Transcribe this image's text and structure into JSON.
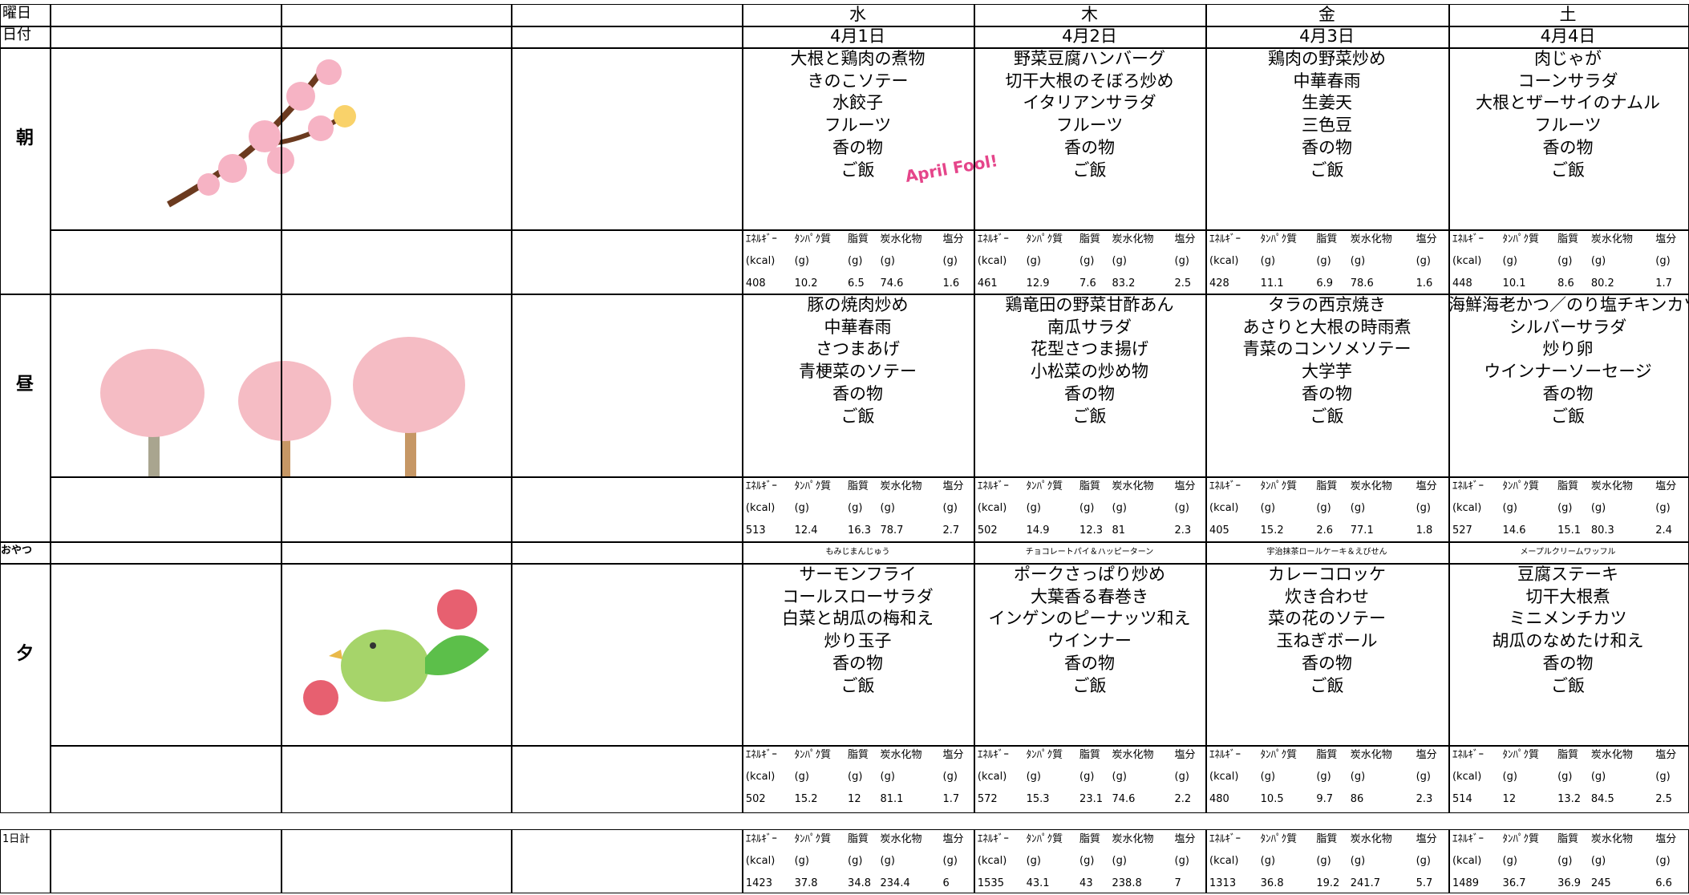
{
  "labels": {
    "weekday": "曜日",
    "date": "日付",
    "breakfast": "朝",
    "lunch": "昼",
    "snack": "おやつ",
    "dinner": "夕",
    "daily_total": "1日計"
  },
  "april_fool_sticker": "April Fool!",
  "nutrition_headers": [
    "ｴﾈﾙｷﾞｰ",
    "ﾀﾝﾊﾟｸ質",
    "脂質",
    "炭水化物",
    "塩分"
  ],
  "nutrition_units": [
    "(kcal)",
    "(g)",
    "(g)",
    "(g)",
    "(g)"
  ],
  "days": [
    {
      "weekday": "水",
      "date": "4月1日",
      "breakfast": [
        "大根と鶏肉の煮物",
        "きのこソテー",
        "水餃子",
        "フルーツ",
        "香の物",
        "ご飯"
      ],
      "breakfast_nutrition": [
        408,
        10.2,
        6.5,
        74.6,
        1.6
      ],
      "lunch": [
        "豚の焼肉炒め",
        "中華春雨",
        "さつまあげ",
        "青梗菜のソテー",
        "香の物",
        "ご飯"
      ],
      "lunch_nutrition": [
        513,
        12.4,
        16.3,
        78.7,
        2.7
      ],
      "snack": "もみじまんじゅう",
      "dinner": [
        "サーモンフライ",
        "コールスローサラダ",
        "白菜と胡瓜の梅和え",
        "炒り玉子",
        "香の物",
        "ご飯"
      ],
      "dinner_nutrition": [
        502,
        15.2,
        12,
        81.1,
        1.7
      ],
      "daily_total": [
        1423,
        37.8,
        34.8,
        234.4,
        6
      ]
    },
    {
      "weekday": "木",
      "date": "4月2日",
      "breakfast": [
        "野菜豆腐ハンバーグ",
        "切干大根のそぼろ炒め",
        "イタリアンサラダ",
        "フルーツ",
        "香の物",
        "ご飯"
      ],
      "breakfast_nutrition": [
        461,
        12.9,
        7.6,
        83.2,
        2.5
      ],
      "lunch": [
        "鶏竜田の野菜甘酢あん",
        "南瓜サラダ",
        "花型さつま揚げ",
        "小松菜の炒め物",
        "香の物",
        "ご飯"
      ],
      "lunch_nutrition": [
        502,
        14.9,
        12.3,
        81,
        2.3
      ],
      "snack": "チョコレートパイ＆ハッピーターン",
      "dinner": [
        "ポークさっぱり炒め",
        "大葉香る春巻き",
        "インゲンのピーナッツ和え",
        "ウインナー",
        "香の物",
        "ご飯"
      ],
      "dinner_nutrition": [
        572,
        15.3,
        23.1,
        74.6,
        2.2
      ],
      "daily_total": [
        1535,
        43.1,
        43,
        238.8,
        7
      ]
    },
    {
      "weekday": "金",
      "date": "4月3日",
      "breakfast": [
        "鶏肉の野菜炒め",
        "中華春雨",
        "生姜天",
        "三色豆",
        "香の物",
        "ご飯"
      ],
      "breakfast_nutrition": [
        428,
        11.1,
        6.9,
        78.6,
        1.6
      ],
      "lunch": [
        "タラの西京焼き",
        "あさりと大根の時雨煮",
        "青菜のコンソメソテー",
        "大学芋",
        "香の物",
        "ご飯"
      ],
      "lunch_nutrition": [
        405,
        15.2,
        2.6,
        77.1,
        1.8
      ],
      "snack": "宇治抹茶ロールケーキ＆えびせん",
      "dinner": [
        "カレーコロッケ",
        "炊き合わせ",
        "菜の花のソテー",
        "玉ねぎボール",
        "香の物",
        "ご飯"
      ],
      "dinner_nutrition": [
        480,
        10.5,
        9.7,
        86,
        2.3
      ],
      "daily_total": [
        1313,
        36.8,
        19.2,
        241.7,
        5.7
      ]
    },
    {
      "weekday": "土",
      "date": "4月4日",
      "breakfast": [
        "肉じゃが",
        "コーンサラダ",
        "大根とザーサイのナムル",
        "フルーツ",
        "香の物",
        "ご飯"
      ],
      "breakfast_nutrition": [
        448,
        10.1,
        8.6,
        80.2,
        1.7
      ],
      "lunch": [
        "海鮮海老かつ／のり塩チキンカツ",
        "シルバーサラダ",
        "炒り卵",
        "ウインナーソーセージ",
        "香の物",
        "ご飯"
      ],
      "lunch_nutrition": [
        527,
        14.6,
        15.1,
        80.3,
        2.4
      ],
      "snack": "メープルクリームワッフル",
      "dinner": [
        "豆腐ステーキ",
        "切干大根煮",
        "ミニメンチカツ",
        "胡瓜のなめたけ和え",
        "香の物",
        "ご飯"
      ],
      "dinner_nutrition": [
        514,
        12,
        13.2,
        84.5,
        2.5
      ],
      "daily_total": [
        1489,
        36.7,
        36.9,
        245,
        6.6
      ]
    }
  ]
}
